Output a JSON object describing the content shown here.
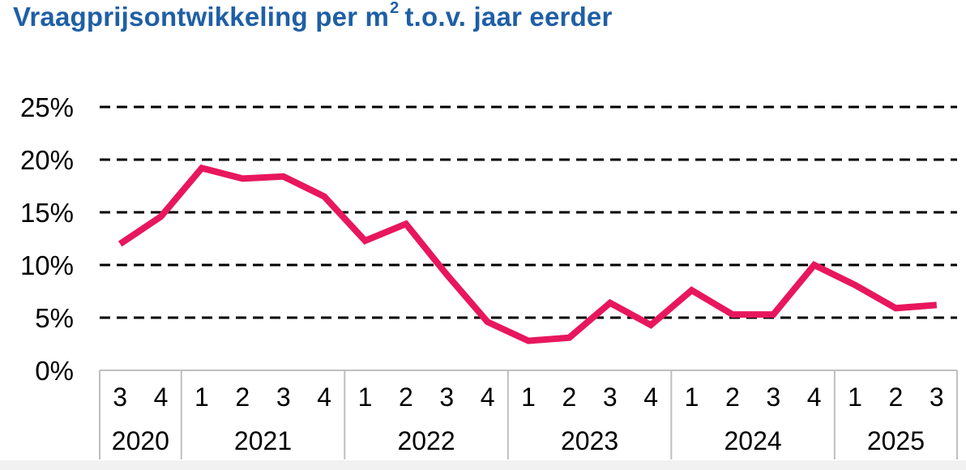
{
  "chart_data": {
    "type": "line",
    "title": "Vraagprijsontwikkeling per m",
    "title_superscript": "2",
    "title_suffix": "t.o.v. jaar eerder",
    "xlabel": "",
    "ylabel": "",
    "ylim": [
      0,
      25
    ],
    "yticks": [
      0,
      5,
      10,
      15,
      20,
      25
    ],
    "ytick_labels": [
      "0%",
      "5%",
      "10%",
      "15%",
      "20%",
      "25%"
    ],
    "grid": "dashed horizontal",
    "legend": "none",
    "quarters": [
      "3",
      "4",
      "1",
      "2",
      "3",
      "4",
      "1",
      "2",
      "3",
      "4",
      "1",
      "2",
      "3",
      "4",
      "1",
      "2",
      "3",
      "4",
      "1",
      "2",
      "3"
    ],
    "years": [
      {
        "label": "2020",
        "count": 2
      },
      {
        "label": "2021",
        "count": 4
      },
      {
        "label": "2022",
        "count": 4
      },
      {
        "label": "2023",
        "count": 4
      },
      {
        "label": "2024",
        "count": 4
      },
      {
        "label": "2025",
        "count": 3
      }
    ],
    "series": [
      {
        "color": "#e8175d",
        "values": [
          12.0,
          14.6,
          19.2,
          18.2,
          18.4,
          16.5,
          12.3,
          13.9,
          9.1,
          4.6,
          2.8,
          3.1,
          6.4,
          4.3,
          7.6,
          5.3,
          5.3,
          10.0,
          8.1,
          5.9,
          6.2
        ]
      }
    ]
  },
  "colors": {
    "title": "#1f5fa6",
    "line": "#e8175d",
    "grid": "#000000",
    "axis_boxes": "#bfbfbf"
  }
}
